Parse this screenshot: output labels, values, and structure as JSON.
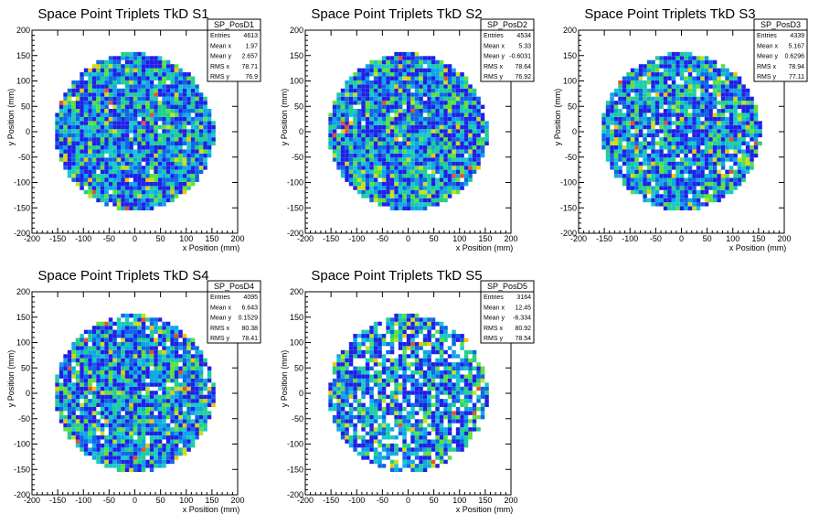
{
  "canvas_title": "",
  "chart_data": [
    {
      "type": "heatmap",
      "title": "Space Point Triplets TkD S1",
      "xlabel": "x Position (mm)",
      "ylabel": "y Position (mm)",
      "xlim": [
        -200,
        200
      ],
      "ylim": [
        -200,
        200
      ],
      "xticks": [
        -200,
        -150,
        -100,
        -50,
        0,
        50,
        100,
        150,
        200
      ],
      "yticks": [
        -200,
        -150,
        -100,
        -50,
        0,
        50,
        100,
        150,
        200
      ],
      "circle_radius": 155,
      "bin_width": 8,
      "stats": {
        "name": "SP_PosD1",
        "rows": [
          {
            "label": "Entries",
            "value": "4613"
          },
          {
            "label": "Mean x",
            "value": "1.97"
          },
          {
            "label": "Mean y",
            "value": "2.657"
          },
          {
            "label": "RMS x",
            "value": "78.71"
          },
          {
            "label": "RMS y",
            "value": "76.9"
          }
        ]
      }
    },
    {
      "type": "heatmap",
      "title": "Space Point Triplets TkD S2",
      "xlabel": "x Position (mm)",
      "ylabel": "y Position (mm)",
      "xlim": [
        -200,
        200
      ],
      "ylim": [
        -200,
        200
      ],
      "xticks": [
        -200,
        -150,
        -100,
        -50,
        0,
        50,
        100,
        150,
        200
      ],
      "yticks": [
        -200,
        -150,
        -100,
        -50,
        0,
        50,
        100,
        150,
        200
      ],
      "circle_radius": 155,
      "bin_width": 8,
      "stats": {
        "name": "SP_PosD2",
        "rows": [
          {
            "label": "Entries",
            "value": "4534"
          },
          {
            "label": "Mean x",
            "value": "5.33"
          },
          {
            "label": "Mean y",
            "value": "-0.6031"
          },
          {
            "label": "RMS x",
            "value": "78.64"
          },
          {
            "label": "RMS y",
            "value": "76.92"
          }
        ]
      }
    },
    {
      "type": "heatmap",
      "title": "Space Point Triplets TkD S3",
      "xlabel": "x Position (mm)",
      "ylabel": "y Position (mm)",
      "xlim": [
        -200,
        200
      ],
      "ylim": [
        -200,
        200
      ],
      "xticks": [
        -200,
        -150,
        -100,
        -50,
        0,
        50,
        100,
        150,
        200
      ],
      "yticks": [
        -200,
        -150,
        -100,
        -50,
        0,
        50,
        100,
        150,
        200
      ],
      "circle_radius": 155,
      "bin_width": 8,
      "stats": {
        "name": "SP_PosD3",
        "rows": [
          {
            "label": "Entries",
            "value": "4339"
          },
          {
            "label": "Mean x",
            "value": "5.167"
          },
          {
            "label": "Mean y",
            "value": "0.6296"
          },
          {
            "label": "RMS x",
            "value": "78.94"
          },
          {
            "label": "RMS y",
            "value": "77.11"
          }
        ]
      }
    },
    {
      "type": "heatmap",
      "title": "Space Point Triplets TkD S4",
      "xlabel": "x Position (mm)",
      "ylabel": "y Position (mm)",
      "xlim": [
        -200,
        200
      ],
      "ylim": [
        -200,
        200
      ],
      "xticks": [
        -200,
        -150,
        -100,
        -50,
        0,
        50,
        100,
        150,
        200
      ],
      "yticks": [
        -200,
        -150,
        -100,
        -50,
        0,
        50,
        100,
        150,
        200
      ],
      "circle_radius": 155,
      "bin_width": 8,
      "stats": {
        "name": "SP_PosD4",
        "rows": [
          {
            "label": "Entries",
            "value": "4095"
          },
          {
            "label": "Mean x",
            "value": "6.643"
          },
          {
            "label": "Mean y",
            "value": "0.1529"
          },
          {
            "label": "RMS x",
            "value": "80.38"
          },
          {
            "label": "RMS y",
            "value": "78.41"
          }
        ]
      }
    },
    {
      "type": "heatmap",
      "title": "Space Point Triplets TkD S5",
      "xlabel": "x Position (mm)",
      "ylabel": "y Position (mm)",
      "xlim": [
        -200,
        200
      ],
      "ylim": [
        -200,
        200
      ],
      "xticks": [
        -200,
        -150,
        -100,
        -50,
        0,
        50,
        100,
        150,
        200
      ],
      "yticks": [
        -200,
        -150,
        -100,
        -50,
        0,
        50,
        100,
        150,
        200
      ],
      "circle_radius": 155,
      "bin_width": 8,
      "stats": {
        "name": "SP_PosD5",
        "rows": [
          {
            "label": "Entries",
            "value": "3164"
          },
          {
            "label": "Mean x",
            "value": "12.45"
          },
          {
            "label": "Mean y",
            "value": "-6.334"
          },
          {
            "label": "RMS x",
            "value": "80.92"
          },
          {
            "label": "RMS y",
            "value": "78.54"
          }
        ]
      }
    }
  ],
  "palette": [
    "#1f1fe8",
    "#0f66e6",
    "#0ea6e8",
    "#17c9c9",
    "#1fd08a",
    "#5ee13b",
    "#c8e01e",
    "#f5c400",
    "#e3542a"
  ],
  "empty_bin_fraction": [
    0.02,
    0.02,
    0.07,
    0.05,
    0.22
  ]
}
